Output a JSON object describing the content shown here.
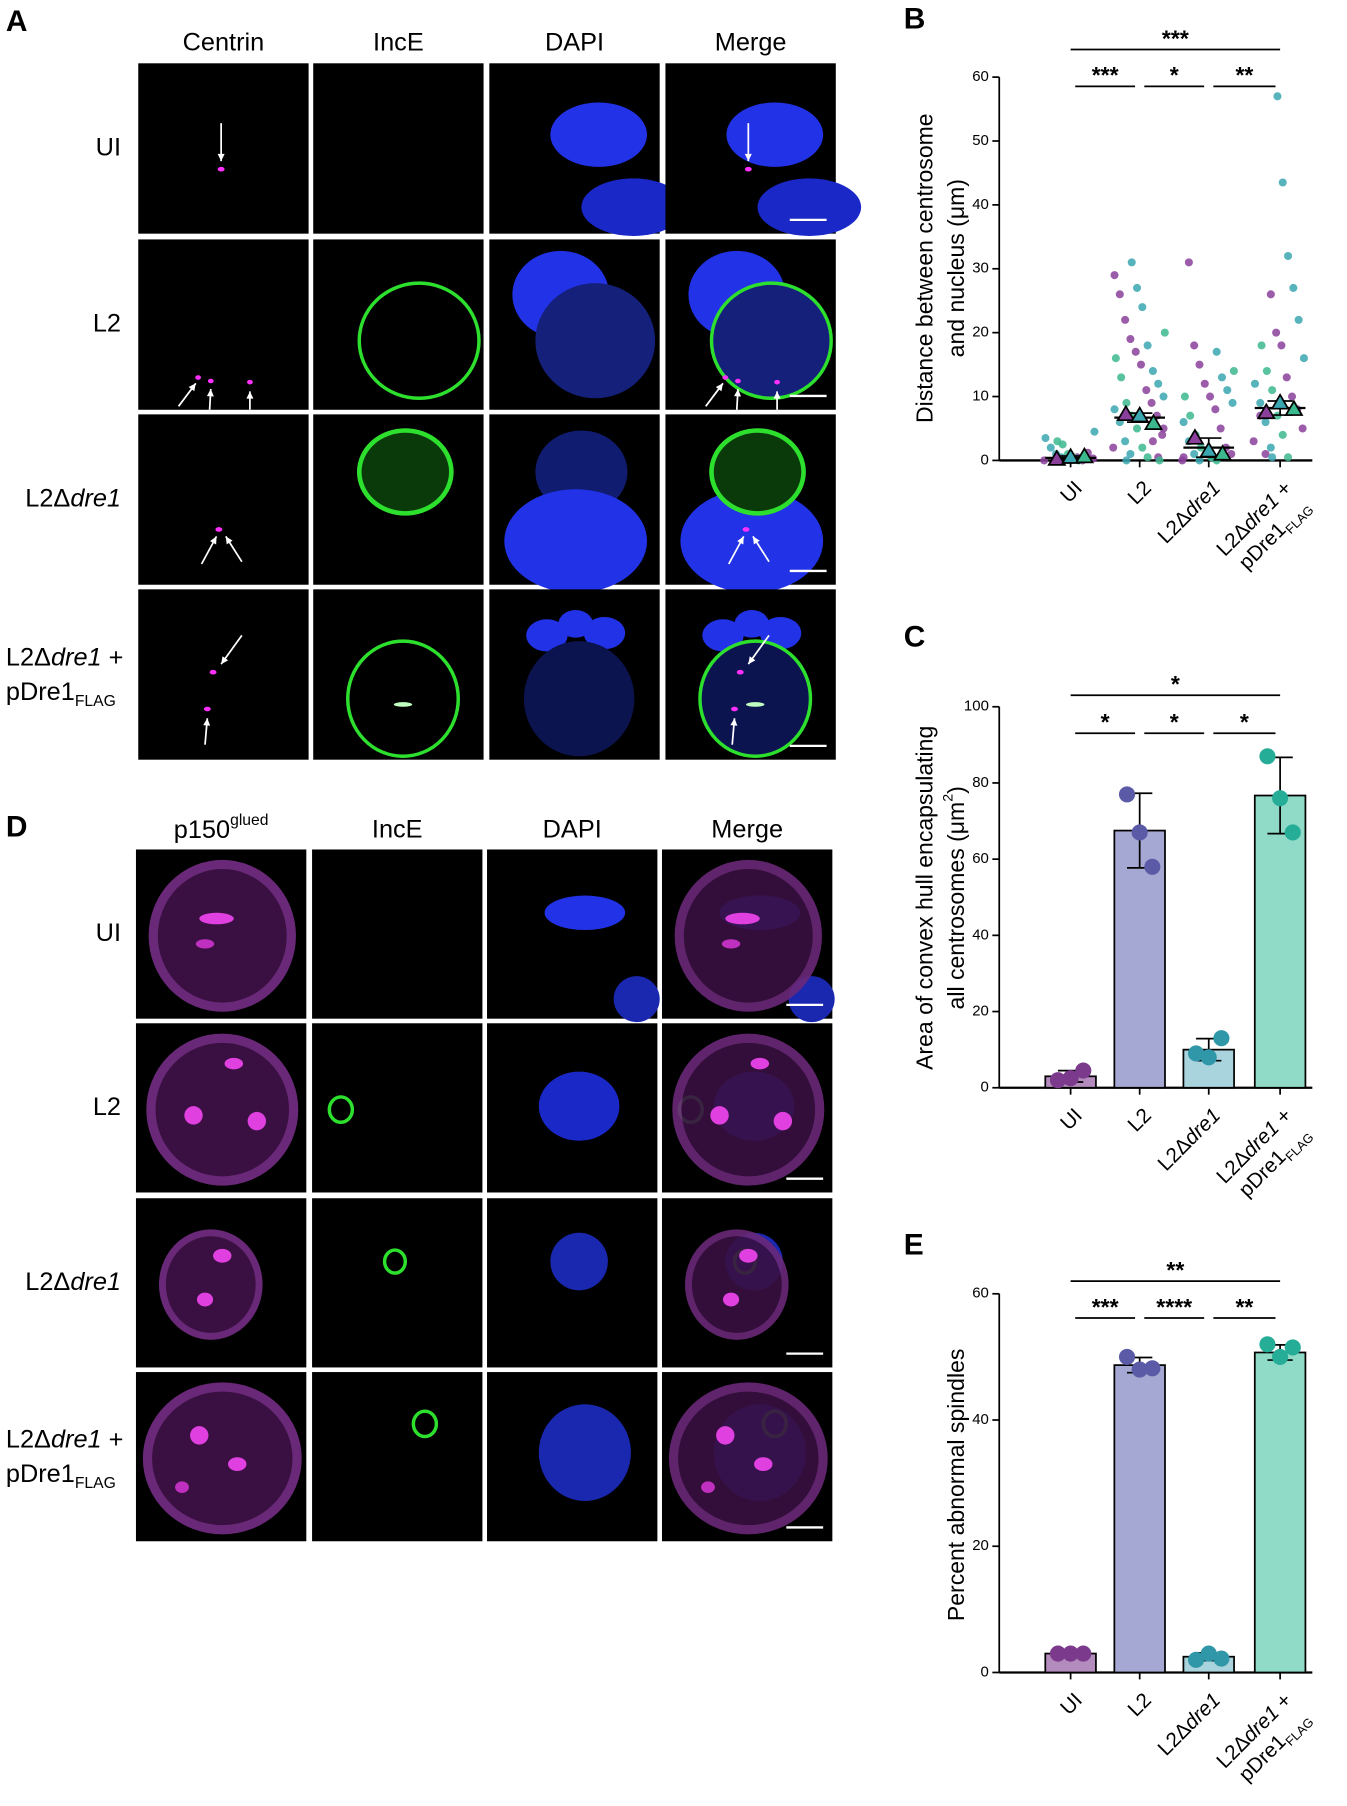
{
  "figure": {
    "panel_a": {
      "label": "A",
      "columns": [
        "Centrin",
        "IncE",
        "DAPI",
        "Merge"
      ],
      "rows": [
        [
          [
            {
              "text": "UI"
            }
          ]
        ],
        [
          [
            {
              "text": "L2"
            }
          ]
        ],
        [
          [
            {
              "text": "L2Δ"
            },
            {
              "text": "dre1",
              "style": "italic"
            }
          ]
        ],
        [
          [
            {
              "text": "L2Δ"
            },
            {
              "text": "dre1",
              "style": "italic"
            },
            {
              "text": " +"
            }
          ],
          [
            {
              "text": "pDre1"
            },
            {
              "text": "FLAG",
              "style": "sub"
            }
          ]
        ]
      ]
    },
    "panel_d": {
      "label": "D",
      "columns": [
        [
          [
            {
              "text": "p150"
            },
            {
              "text": "glued",
              "style": "sup"
            }
          ]
        ],
        "IncE",
        "DAPI",
        "Merge"
      ],
      "rows": [
        [
          [
            {
              "text": "UI"
            }
          ]
        ],
        [
          [
            {
              "text": "L2"
            }
          ]
        ],
        [
          [
            {
              "text": "L2Δ"
            },
            {
              "text": "dre1",
              "style": "italic"
            }
          ]
        ],
        [
          [
            {
              "text": "L2Δ"
            },
            {
              "text": "dre1",
              "style": "italic"
            },
            {
              "text": " +"
            }
          ],
          [
            {
              "text": "pDre1"
            },
            {
              "text": "FLAG",
              "style": "sub"
            }
          ]
        ]
      ]
    }
  },
  "chart_data": [
    {
      "type": "dot",
      "panel_label": "B",
      "y_label": [
        [
          {
            "text": "Distance between centrosome"
          }
        ],
        [
          {
            "text": "and nucleus (μm)"
          }
        ]
      ],
      "categories": [
        [
          [
            {
              "text": "UI"
            }
          ]
        ],
        [
          [
            {
              "text": "L2"
            }
          ]
        ],
        [
          [
            {
              "text": "L2Δ"
            },
            {
              "text": "dre1",
              "style": "italic"
            }
          ]
        ],
        [
          [
            {
              "text": "L2Δ"
            },
            {
              "text": "dre1",
              "style": "italic"
            },
            {
              "text": " +"
            }
          ],
          [
            {
              "text": "pDre1"
            },
            {
              "text": "FLAG",
              "style": "sub"
            }
          ]
        ]
      ],
      "ylim": [
        0,
        60
      ],
      "yticks": [
        0,
        10,
        20,
        30,
        40,
        50,
        60
      ],
      "values": [
        0.4,
        6.7,
        2.0,
        8.2
      ],
      "errors": [
        0.3,
        0.7,
        1.5,
        1.1
      ],
      "series": [
        {
          "color": "#8a3f9b",
          "values": [
            0.2,
            7.2,
            3.5,
            7.5
          ],
          "points": [
            [
              0,
              0.3,
              1.2,
              0,
              0.5
            ],
            [
              2,
              4,
              7,
              9,
              11,
              15,
              17,
              19,
              22,
              26,
              29,
              5,
              0.5,
              3
            ],
            [
              0,
              1,
              2,
              5,
              8,
              10,
              12,
              15,
              18,
              31,
              0.5
            ],
            [
              3,
              5,
              8,
              10,
              13,
              18,
              20,
              26,
              1,
              7
            ]
          ]
        },
        {
          "color": "#3aa6b0",
          "values": [
            0.5,
            7.0,
            1.5,
            9.0
          ],
          "points": [
            [
              0.5,
              1,
              2,
              3.5,
              4.5
            ],
            [
              1,
              3,
              6,
              8,
              10,
              12,
              14,
              18,
              24,
              27,
              31,
              0
            ],
            [
              0,
              1,
              3,
              6,
              9,
              11,
              13,
              17,
              0.5
            ],
            [
              2,
              6,
              9,
              12,
              16,
              22,
              27,
              32,
              43.5,
              57,
              0.5
            ]
          ]
        },
        {
          "color": "#3cb88f",
          "values": [
            0.6,
            5.8,
            1.0,
            8.0
          ],
          "points": [
            [
              0,
              0.5,
              1,
              2.5,
              3
            ],
            [
              0.5,
              2,
              5,
              7,
              9,
              13,
              16,
              20,
              0
            ],
            [
              0,
              0.5,
              1,
              2,
              4,
              7,
              10,
              14
            ],
            [
              0.5,
              4,
              7,
              11,
              14,
              18
            ]
          ]
        }
      ],
      "significance": [
        {
          "from": 0,
          "to": 3,
          "label": "***"
        },
        {
          "from": 0,
          "to": 1,
          "label": "***"
        },
        {
          "from": 1,
          "to": 2,
          "label": "*"
        },
        {
          "from": 2,
          "to": 3,
          "label": "**"
        }
      ]
    },
    {
      "type": "bar",
      "panel_label": "C",
      "y_label": [
        [
          {
            "text": "Area of convex hull encapsulating"
          }
        ],
        [
          {
            "text": "all centrosomes (μm"
          },
          {
            "text": "2",
            "style": "sup"
          },
          {
            "text": ")"
          }
        ]
      ],
      "categories": [
        [
          [
            {
              "text": "UI"
            }
          ]
        ],
        [
          [
            {
              "text": "L2"
            }
          ]
        ],
        [
          [
            {
              "text": "L2Δ"
            },
            {
              "text": "dre1",
              "style": "italic"
            }
          ]
        ],
        [
          [
            {
              "text": "L2Δ"
            },
            {
              "text": "dre1",
              "style": "italic"
            },
            {
              "text": " +"
            }
          ],
          [
            {
              "text": "pDre1"
            },
            {
              "text": "FLAG",
              "style": "sub"
            }
          ]
        ]
      ],
      "ylim": [
        0,
        100
      ],
      "yticks": [
        0,
        20,
        40,
        60,
        80,
        100
      ],
      "values": [
        3.0,
        67.5,
        10.0,
        76.7
      ],
      "errors": [
        1.5,
        9.8,
        2.9,
        10.0
      ],
      "points": [
        [
          2,
          2.5,
          4.5
        ],
        [
          77,
          67,
          58
        ],
        [
          9,
          8,
          13
        ],
        [
          87,
          76,
          67
        ]
      ],
      "colors": [
        "#b48bbd",
        "#a5a8d2",
        "#a9d3dd",
        "#8fdbc8"
      ],
      "point_colors": [
        "#7b3a8c",
        "#5b5aa6",
        "#2f97a8",
        "#26ad98"
      ],
      "significance": [
        {
          "from": 0,
          "to": 3,
          "label": "*"
        },
        {
          "from": 0,
          "to": 1,
          "label": "*"
        },
        {
          "from": 1,
          "to": 2,
          "label": "*"
        },
        {
          "from": 2,
          "to": 3,
          "label": "*"
        }
      ]
    },
    {
      "type": "bar",
      "panel_label": "E",
      "y_label": [
        [
          {
            "text": "Percent abnormal spindles"
          }
        ]
      ],
      "categories": [
        [
          [
            {
              "text": "UI"
            }
          ]
        ],
        [
          [
            {
              "text": "L2"
            }
          ]
        ],
        [
          [
            {
              "text": "L2Δ"
            },
            {
              "text": "dre1",
              "style": "italic"
            }
          ]
        ],
        [
          [
            {
              "text": "L2Δ"
            },
            {
              "text": "dre1",
              "style": "italic"
            },
            {
              "text": " +"
            }
          ],
          [
            {
              "text": "pDre1"
            },
            {
              "text": "FLAG",
              "style": "sub"
            }
          ]
        ]
      ],
      "ylim": [
        0,
        60
      ],
      "yticks": [
        0,
        20,
        40,
        60
      ],
      "values": [
        3,
        48.7,
        2.5,
        50.7
      ],
      "errors": [
        0.1,
        1.2,
        0.6,
        1.2
      ],
      "points": [
        [
          3,
          3,
          3
        ],
        [
          50,
          48,
          48.2
        ],
        [
          2,
          3,
          2.2
        ],
        [
          52,
          50,
          51.5
        ]
      ],
      "colors": [
        "#b48bbd",
        "#a5a8d2",
        "#a9d3dd",
        "#8fdbc8"
      ],
      "point_colors": [
        "#7b3a8c",
        "#5b5aa6",
        "#2f97a8",
        "#26ad98"
      ],
      "significance": [
        {
          "from": 0,
          "to": 3,
          "label": "**"
        },
        {
          "from": 0,
          "to": 1,
          "label": "***"
        },
        {
          "from": 1,
          "to": 2,
          "label": "****"
        },
        {
          "from": 2,
          "to": 3,
          "label": "**"
        }
      ]
    }
  ]
}
